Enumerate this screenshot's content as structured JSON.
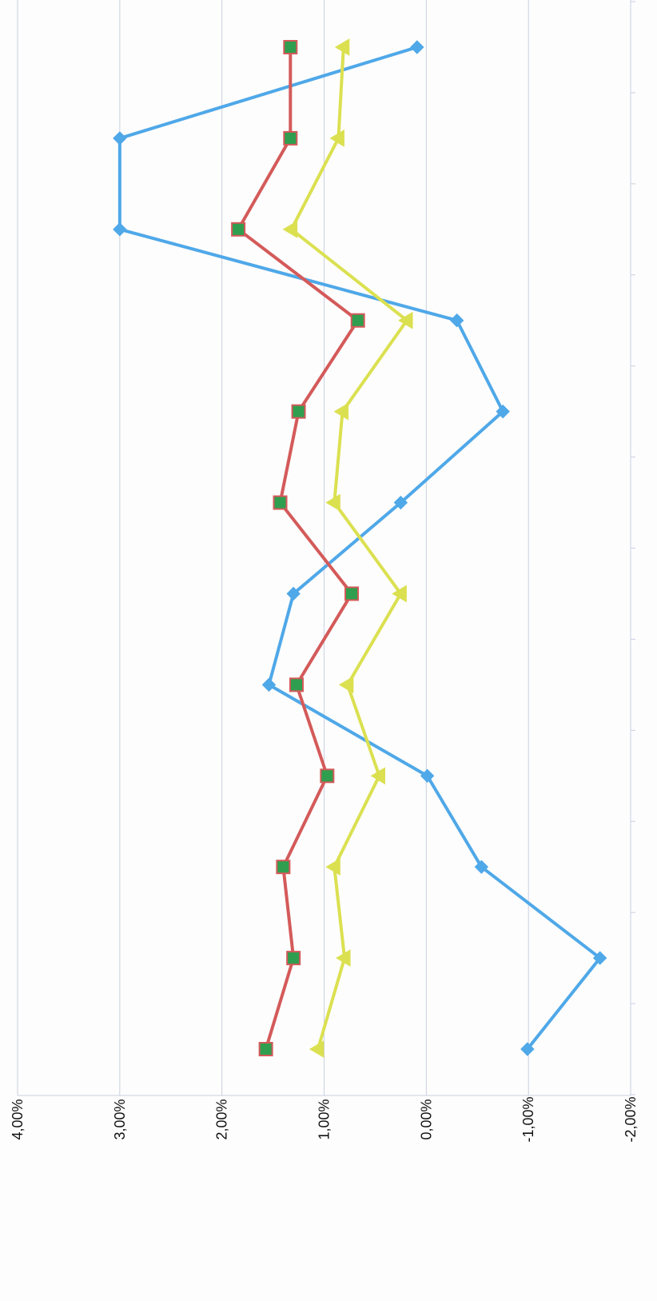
{
  "chart_data": {
    "type": "line",
    "orientation": "rotated-90",
    "title": "",
    "xlabel": "",
    "ylabel": "",
    "ylim": [
      -2,
      4
    ],
    "y_ticks": [
      "-2,00%",
      "-1,00%",
      "0,00%",
      "1,00%",
      "2,00%",
      "3,00%",
      "4,00%"
    ],
    "grid": true,
    "legend": "none",
    "x": [
      1,
      2,
      3,
      4,
      5,
      6,
      7,
      8,
      9,
      10,
      11,
      12
    ],
    "series": [
      {
        "marker": "diamond",
        "color": "#4fa8e8",
        "values": [
          -0.99,
          -1.7,
          -0.54,
          -0.01,
          1.54,
          1.3,
          0.25,
          -0.75,
          -0.3,
          3.0,
          3.0,
          0.09
        ]
      },
      {
        "marker": "square",
        "color": "#d45a5a",
        "marker_fill": "#2f9e4f",
        "values": [
          1.57,
          1.3,
          1.4,
          0.97,
          1.27,
          0.73,
          1.43,
          1.25,
          0.67,
          1.84,
          1.33,
          1.33
        ]
      },
      {
        "marker": "triangle",
        "color": "#dbe050",
        "values": [
          1.06,
          0.8,
          0.9,
          0.46,
          0.77,
          0.25,
          0.9,
          0.82,
          0.19,
          1.32,
          0.86,
          0.81
        ]
      }
    ]
  }
}
